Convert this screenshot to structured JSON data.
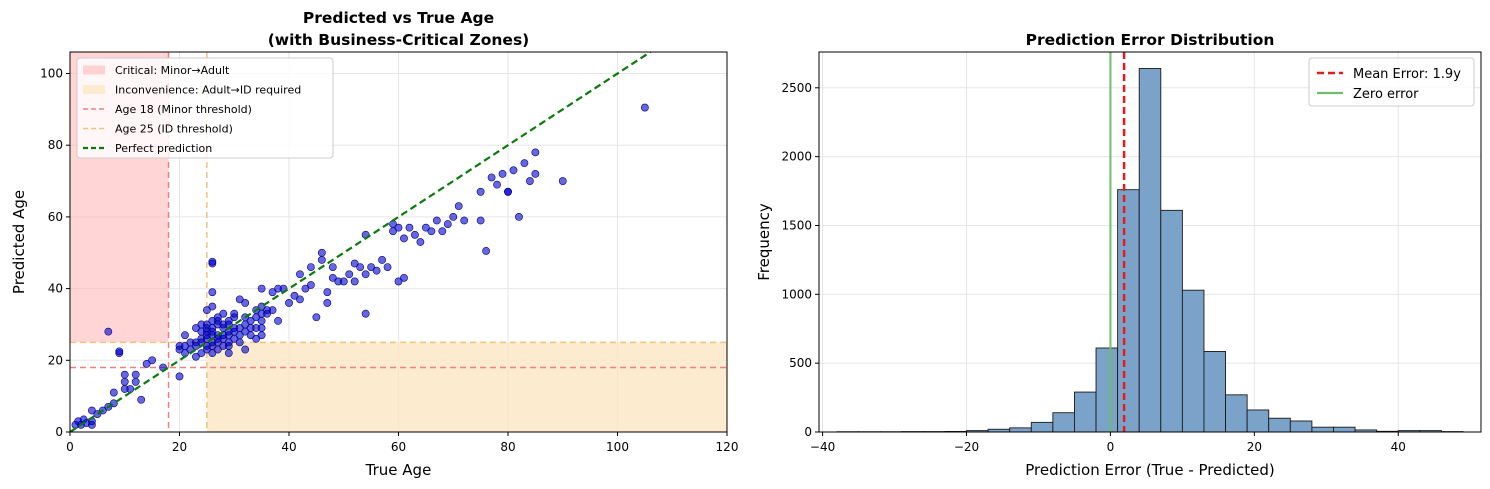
{
  "chart_data": [
    {
      "type": "scatter",
      "title": "Predicted vs True Age",
      "subtitle": "(with Business-Critical Zones)",
      "xlabel": "True Age",
      "ylabel": "Predicted Age",
      "xlim": [
        0,
        120
      ],
      "ylim": [
        0,
        106
      ],
      "xticks": [
        0,
        20,
        40,
        60,
        80,
        100,
        120
      ],
      "yticks": [
        0,
        20,
        40,
        60,
        80,
        100
      ],
      "grid": true,
      "legend_position": "top-left",
      "zones": [
        {
          "name": "Critical: Minor→Adult",
          "x": [
            0,
            18
          ],
          "y": [
            25,
            106
          ],
          "color": "#ffb3b3"
        },
        {
          "name": "Inconvenience: Adult→ID required",
          "x": [
            25,
            120
          ],
          "y": [
            0,
            25
          ],
          "color": "#fde6c4"
        }
      ],
      "thresholds": [
        {
          "name": "Age 18 (Minor threshold)",
          "value": 18,
          "color": "#f08080"
        },
        {
          "name": "Age 25 (ID threshold)",
          "value": 25,
          "color": "#f6c27a"
        }
      ],
      "reference_line": {
        "name": "Perfect prediction",
        "color": "#0a7a0a"
      },
      "point_color": "#0000cc",
      "points": [
        [
          1,
          2
        ],
        [
          1.5,
          3
        ],
        [
          2,
          2
        ],
        [
          2.5,
          3.5
        ],
        [
          3,
          2.5
        ],
        [
          4,
          2
        ],
        [
          4,
          3
        ],
        [
          4,
          6
        ],
        [
          5,
          5
        ],
        [
          6,
          6
        ],
        [
          7,
          28
        ],
        [
          7,
          7
        ],
        [
          8,
          11
        ],
        [
          8,
          8
        ],
        [
          9,
          22
        ],
        [
          9,
          22.5
        ],
        [
          10,
          14
        ],
        [
          10,
          16
        ],
        [
          10,
          12
        ],
        [
          11,
          12
        ],
        [
          12,
          14
        ],
        [
          12,
          16
        ],
        [
          13,
          9
        ],
        [
          14,
          19
        ],
        [
          15,
          20
        ],
        [
          17,
          18
        ],
        [
          20,
          15.5
        ],
        [
          20,
          24
        ],
        [
          20,
          23
        ],
        [
          21,
          22
        ],
        [
          21,
          24
        ],
        [
          21,
          27
        ],
        [
          22,
          25
        ],
        [
          22,
          23
        ],
        [
          23,
          25
        ],
        [
          23,
          24
        ],
        [
          23,
          29
        ],
        [
          23,
          21
        ],
        [
          24,
          22
        ],
        [
          24,
          26
        ],
        [
          24,
          25
        ],
        [
          24,
          28
        ],
        [
          24,
          30
        ],
        [
          25,
          23
        ],
        [
          25,
          24
        ],
        [
          25,
          26
        ],
        [
          25,
          27
        ],
        [
          25,
          28
        ],
        [
          25,
          29
        ],
        [
          25,
          30
        ],
        [
          25,
          34
        ],
        [
          26,
          22
        ],
        [
          26,
          24
        ],
        [
          26,
          25
        ],
        [
          26,
          27
        ],
        [
          26,
          28
        ],
        [
          26,
          29
        ],
        [
          26,
          31
        ],
        [
          26,
          35
        ],
        [
          26,
          39
        ],
        [
          26,
          47
        ],
        [
          26,
          47.5
        ],
        [
          27,
          23
        ],
        [
          27,
          25
        ],
        [
          27,
          26
        ],
        [
          27,
          27
        ],
        [
          27,
          30
        ],
        [
          27,
          31
        ],
        [
          27,
          32
        ],
        [
          28,
          24
        ],
        [
          28,
          26
        ],
        [
          28,
          27
        ],
        [
          28,
          29
        ],
        [
          28,
          30
        ],
        [
          28,
          33
        ],
        [
          29,
          24
        ],
        [
          29,
          25
        ],
        [
          29,
          27
        ],
        [
          29,
          28
        ],
        [
          29,
          30
        ],
        [
          29,
          31
        ],
        [
          29,
          22
        ],
        [
          30,
          26
        ],
        [
          30,
          28
        ],
        [
          30,
          29
        ],
        [
          30,
          32
        ],
        [
          30,
          33
        ],
        [
          31,
          25
        ],
        [
          31,
          27
        ],
        [
          31,
          29
        ],
        [
          31,
          37
        ],
        [
          32,
          23
        ],
        [
          32,
          28
        ],
        [
          32,
          30
        ],
        [
          32,
          32
        ],
        [
          32,
          36
        ],
        [
          33,
          27
        ],
        [
          33,
          29
        ],
        [
          33,
          31
        ],
        [
          34,
          26
        ],
        [
          34,
          29
        ],
        [
          34,
          32
        ],
        [
          34,
          34
        ],
        [
          35,
          27
        ],
        [
          35,
          29
        ],
        [
          35,
          31
        ],
        [
          35,
          33
        ],
        [
          35,
          35
        ],
        [
          35,
          40
        ],
        [
          36,
          34
        ],
        [
          36,
          33
        ],
        [
          37,
          34
        ],
        [
          37,
          39
        ],
        [
          38,
          40
        ],
        [
          38,
          31
        ],
        [
          39,
          40
        ],
        [
          40,
          36
        ],
        [
          41,
          38
        ],
        [
          42,
          37
        ],
        [
          42,
          44
        ],
        [
          43,
          40
        ],
        [
          44,
          41
        ],
        [
          44,
          46
        ],
        [
          45,
          32
        ],
        [
          46,
          48
        ],
        [
          46,
          50
        ],
        [
          47,
          36
        ],
        [
          47,
          39
        ],
        [
          48,
          43
        ],
        [
          48,
          46
        ],
        [
          49,
          42
        ],
        [
          50,
          42
        ],
        [
          51,
          44
        ],
        [
          52,
          42
        ],
        [
          52,
          47
        ],
        [
          53,
          46
        ],
        [
          54,
          44
        ],
        [
          54,
          55
        ],
        [
          54,
          33
        ],
        [
          55,
          46
        ],
        [
          56,
          45
        ],
        [
          57,
          48
        ],
        [
          58,
          46
        ],
        [
          59,
          56
        ],
        [
          59,
          58
        ],
        [
          60,
          57
        ],
        [
          60,
          42
        ],
        [
          61,
          43
        ],
        [
          61,
          54
        ],
        [
          62,
          57
        ],
        [
          63,
          55
        ],
        [
          64,
          53
        ],
        [
          65,
          57
        ],
        [
          66,
          56
        ],
        [
          67,
          59
        ],
        [
          68,
          56
        ],
        [
          69,
          58
        ],
        [
          70,
          60
        ],
        [
          71,
          63
        ],
        [
          72,
          59
        ],
        [
          75,
          67
        ],
        [
          75,
          59
        ],
        [
          76,
          50.5
        ],
        [
          77,
          71
        ],
        [
          78,
          69
        ],
        [
          79,
          72
        ],
        [
          80,
          67
        ],
        [
          80,
          67
        ],
        [
          81,
          73
        ],
        [
          82,
          60
        ],
        [
          83,
          75
        ],
        [
          84,
          70
        ],
        [
          85,
          78
        ],
        [
          85,
          72
        ],
        [
          90,
          70
        ],
        [
          105,
          90.5
        ]
      ]
    },
    {
      "type": "bar",
      "title": "Prediction Error Distribution",
      "xlabel": "Prediction Error (True - Predicted)",
      "ylabel": "Frequency",
      "xlim": [
        -40.5,
        51.5
      ],
      "ylim": [
        0,
        2760
      ],
      "xticks": [
        -40,
        -20,
        0,
        20,
        40
      ],
      "yticks": [
        0,
        500,
        1000,
        1500,
        2000,
        2500
      ],
      "grid": true,
      "legend_position": "top-right",
      "bar_color": "#7ba3c9",
      "bin_edges": [
        -38.0,
        -35.0,
        -32.0,
        -29.0,
        -26.0,
        -23.0,
        -20.0,
        -17.0,
        -14.0,
        -11.0,
        -8.0,
        -5.0,
        -2.0,
        1.0,
        4.0,
        7.0,
        10.0,
        13.0,
        16.0,
        19.0,
        22.0,
        25.0,
        28.0,
        31.0,
        34.0,
        37.0,
        40.0,
        43.0,
        46.0,
        49.0
      ],
      "values": [
        2,
        2,
        2,
        3,
        3,
        4,
        10,
        20,
        30,
        70,
        140,
        290,
        610,
        1760,
        2640,
        1610,
        1030,
        585,
        270,
        160,
        100,
        80,
        35,
        35,
        15,
        5,
        10,
        10,
        3,
        5
      ],
      "mean_error": {
        "name": "Mean Error: 1.9y",
        "value": 1.9,
        "color": "#e81a1a"
      },
      "zero_line": {
        "name": "Zero error",
        "value": 0,
        "color": "#6dbb6d"
      }
    }
  ]
}
